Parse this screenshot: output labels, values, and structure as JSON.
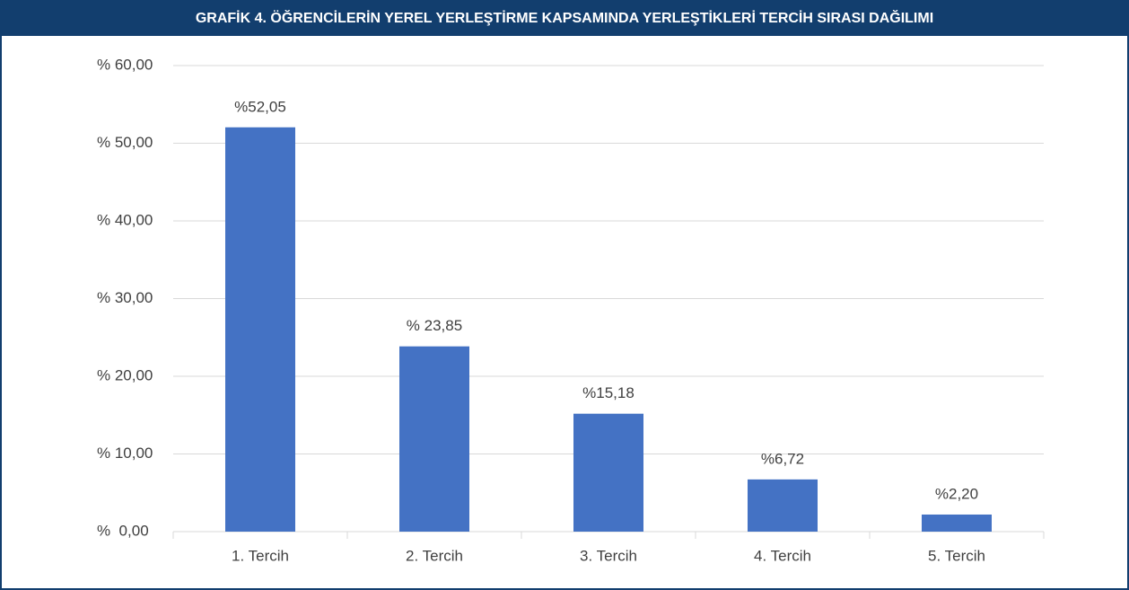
{
  "chart_data": {
    "type": "bar",
    "title": "GRAFİK 4. ÖĞRENCİLERİN YEREL YERLEŞTİRME KAPSAMINDA YERLEŞTİKLERİ TERCİH SIRASI DAĞILIMI",
    "categories": [
      "1. Tercih",
      "2. Tercih",
      "3. Tercih",
      "4. Tercih",
      "5. Tercih"
    ],
    "values": [
      52.05,
      23.85,
      15.18,
      6.72,
      2.2
    ],
    "value_labels": [
      "%52,05",
      "% 23,85",
      "%15,18",
      "%6,72",
      "%2,20"
    ],
    "color": "#4472c4",
    "ylim": [
      0,
      60
    ],
    "yticks": [
      {
        "value": 0,
        "label": "%  0,00"
      },
      {
        "value": 10,
        "label": "% 10,00"
      },
      {
        "value": 20,
        "label": "% 20,00"
      },
      {
        "value": 30,
        "label": "% 30,00"
      },
      {
        "value": 40,
        "label": "% 40,00"
      },
      {
        "value": 50,
        "label": "% 50,00"
      },
      {
        "value": 60,
        "label": "% 60,00"
      }
    ],
    "grid": true
  }
}
